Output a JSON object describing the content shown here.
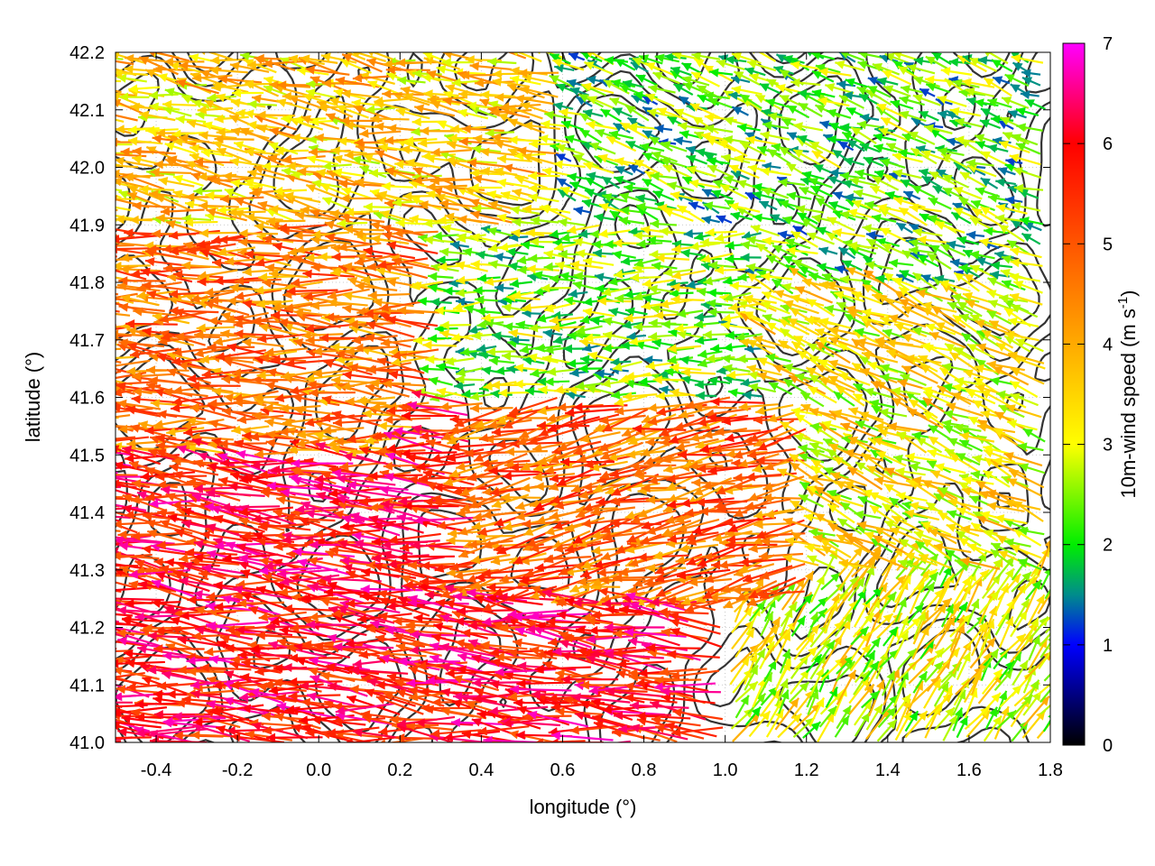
{
  "chart_data": {
    "type": "vector-field",
    "xlabel": "longitude (°)",
    "ylabel": "latitude (°)",
    "xlim": [
      -0.5,
      1.8
    ],
    "ylim": [
      41.0,
      42.2
    ],
    "x_ticks": [
      -0.4,
      -0.2,
      0.0,
      0.2,
      0.4,
      0.6,
      0.8,
      1.0,
      1.2,
      1.4,
      1.6,
      1.8
    ],
    "x_tick_labels": [
      "-0.4",
      "-0.2",
      "0.0",
      "0.2",
      "0.4",
      "0.6",
      "0.8",
      "1.0",
      "1.2",
      "1.4",
      "1.6",
      "1.8"
    ],
    "y_ticks": [
      41.0,
      41.1,
      41.2,
      41.3,
      41.4,
      41.5,
      41.6,
      41.7,
      41.8,
      41.9,
      42.0,
      42.1,
      42.2
    ],
    "y_tick_labels": [
      "41.0",
      "41.1",
      "41.2",
      "41.3",
      "41.4",
      "41.5",
      "41.6",
      "41.7",
      "41.8",
      "41.9",
      "42.0",
      "42.1",
      "42.2"
    ],
    "grid": true,
    "colorbar": {
      "label_main": "10m-wind speed (m s",
      "label_sup": "-1",
      "label_end": ")",
      "range": [
        0,
        7
      ],
      "ticks": [
        0,
        1,
        2,
        3,
        4,
        5,
        6,
        7
      ],
      "tick_labels": [
        "0",
        "1",
        "2",
        "3",
        "4",
        "5",
        "6",
        "7"
      ],
      "stops": [
        {
          "v": 0,
          "color": "#000000"
        },
        {
          "v": 1,
          "color": "#0000ff"
        },
        {
          "v": 1.5,
          "color": "#008c8c"
        },
        {
          "v": 2,
          "color": "#00ee00"
        },
        {
          "v": 3,
          "color": "#ffff00"
        },
        {
          "v": 4,
          "color": "#ffaa00"
        },
        {
          "v": 5,
          "color": "#ff5500"
        },
        {
          "v": 6,
          "color": "#ff0000"
        },
        {
          "v": 7,
          "color": "#ff00ff"
        }
      ]
    },
    "contour_color": "#333333",
    "regions": [
      {
        "name": "southwest",
        "x": [
          -0.5,
          0.4
        ],
        "y": [
          41.0,
          41.5
        ],
        "u": -0.95,
        "v": 0.1,
        "speed": 5.8
      },
      {
        "name": "west",
        "x": [
          -0.5,
          0.3
        ],
        "y": [
          41.5,
          41.9
        ],
        "u": -0.95,
        "v": 0.05,
        "speed": 4.6
      },
      {
        "name": "northwest",
        "x": [
          -0.5,
          0.6
        ],
        "y": [
          41.9,
          42.2
        ],
        "u": -0.9,
        "v": 0.15,
        "speed": 3.6
      },
      {
        "name": "center-south",
        "x": [
          0.4,
          1.2
        ],
        "y": [
          41.25,
          41.6
        ],
        "u": -0.9,
        "v": -0.2,
        "speed": 4.8
      },
      {
        "name": "center",
        "x": [
          0.3,
          1.1
        ],
        "y": [
          41.6,
          41.9
        ],
        "u": -0.9,
        "v": 0.0,
        "speed": 2.4
      },
      {
        "name": "northeast",
        "x": [
          0.6,
          1.8
        ],
        "y": [
          41.8,
          42.2
        ],
        "u": -0.85,
        "v": 0.3,
        "speed": 2.2
      },
      {
        "name": "east",
        "x": [
          1.1,
          1.8
        ],
        "y": [
          41.3,
          41.8
        ],
        "u": -0.85,
        "v": 0.35,
        "speed": 3.2
      },
      {
        "name": "southeast",
        "x": [
          1.0,
          1.8
        ],
        "y": [
          41.0,
          41.3
        ],
        "u": 0.55,
        "v": 0.8,
        "speed": 3.0
      }
    ]
  }
}
